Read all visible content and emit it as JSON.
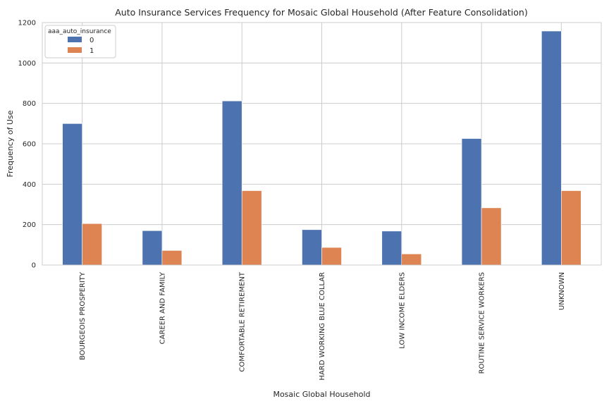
{
  "chart_data": {
    "type": "bar",
    "title": "Auto Insurance Services Frequency for Mosaic Global Household (After Feature Consolidation)",
    "xlabel": "Mosaic Global Household",
    "ylabel": "Frequency of Use",
    "categories": [
      "BOURGEOIS PROSPERITY",
      "CAREER AND FAMILY",
      "COMFORTABLE RETIREMENT",
      "HARD WORKING BLUE COLLAR",
      "LOW INCOME ELDERS",
      "ROUTINE SERVICE WORKERS",
      "UNKNOWN"
    ],
    "series": [
      {
        "name": "0",
        "color": "#4c72b0",
        "values": [
          700,
          170,
          812,
          175,
          168,
          626,
          1158
        ]
      },
      {
        "name": "1",
        "color": "#dd8452",
        "values": [
          205,
          72,
          368,
          87,
          55,
          283,
          368
        ]
      }
    ],
    "ylim": [
      0,
      1200
    ],
    "yticks": [
      0,
      200,
      400,
      600,
      800,
      1000,
      1200
    ],
    "grid": true,
    "legend": {
      "title": "aaa_auto_insurance",
      "placement": "top-left"
    }
  }
}
